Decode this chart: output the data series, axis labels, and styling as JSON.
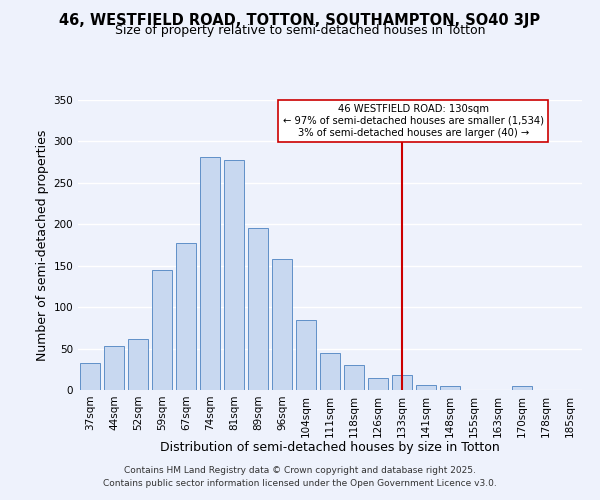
{
  "title_line1": "46, WESTFIELD ROAD, TOTTON, SOUTHAMPTON, SO40 3JP",
  "title_line2": "Size of property relative to semi-detached houses in Totton",
  "xlabel": "Distribution of semi-detached houses by size in Totton",
  "ylabel": "Number of semi-detached properties",
  "bar_labels": [
    "37sqm",
    "44sqm",
    "52sqm",
    "59sqm",
    "67sqm",
    "74sqm",
    "81sqm",
    "89sqm",
    "96sqm",
    "104sqm",
    "111sqm",
    "118sqm",
    "126sqm",
    "133sqm",
    "141sqm",
    "148sqm",
    "155sqm",
    "163sqm",
    "170sqm",
    "178sqm",
    "185sqm"
  ],
  "bar_values": [
    33,
    53,
    62,
    145,
    178,
    281,
    277,
    196,
    158,
    84,
    45,
    30,
    15,
    18,
    6,
    5,
    0,
    0,
    5,
    0,
    0
  ],
  "bar_color": "#c8d8f0",
  "bar_edgecolor": "#6090c8",
  "vline_idx": 13,
  "vline_color": "#cc0000",
  "annotation_title": "46 WESTFIELD ROAD: 130sqm",
  "annotation_line2": "← 97% of semi-detached houses are smaller (1,534)",
  "annotation_line3": "3% of semi-detached houses are larger (40) →",
  "annotation_box_facecolor": "#ffffff",
  "annotation_box_edgecolor": "#cc0000",
  "ylim": [
    0,
    350
  ],
  "yticks": [
    0,
    50,
    100,
    150,
    200,
    250,
    300,
    350
  ],
  "footer_line1": "Contains HM Land Registry data © Crown copyright and database right 2025.",
  "footer_line2": "Contains public sector information licensed under the Open Government Licence v3.0.",
  "background_color": "#eef2fc",
  "grid_color": "#ffffff",
  "title_fontsize": 10.5,
  "subtitle_fontsize": 9,
  "axis_label_fontsize": 9,
  "tick_fontsize": 7.5,
  "annotation_fontsize": 7.2,
  "footer_fontsize": 6.5
}
